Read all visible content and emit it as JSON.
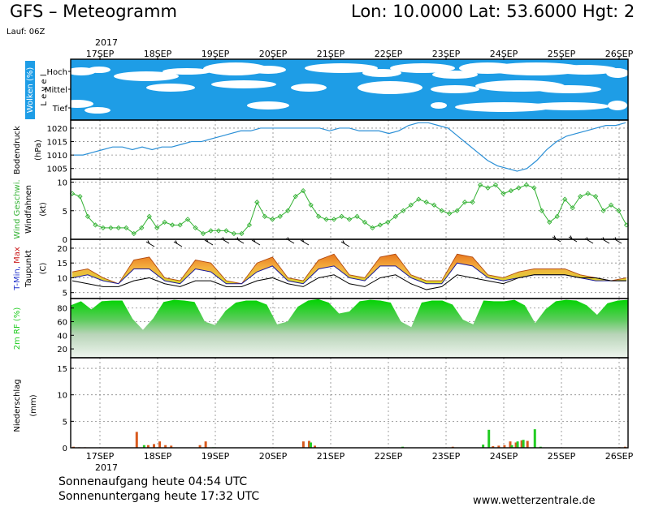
{
  "header": {
    "title": "GFS – Meteogramm",
    "coords": "Lon: 10.0000 Lat: 53.6000 Hgt: 2",
    "run": "Lauf: 06Z"
  },
  "footer": {
    "sunrise": "Sonnenaufgang heute 04:54 UTC",
    "sunset": "Sonnenuntergang heute 17:32 UTC",
    "site": "www.wetterzentrale.de"
  },
  "colors": {
    "cloud_bg": "#1e9de6",
    "pressure": "#2a8fd6",
    "wind": "#34b234",
    "temp_fill": "#e8962a",
    "humidity": "#22cc22",
    "precip_rain": "#d85a1e",
    "precip_shower": "#22cc22"
  },
  "chart_data": {
    "type": "line",
    "x_dates": [
      "17SEP",
      "18SEP",
      "19SEP",
      "20SEP",
      "21SEP",
      "22SEP",
      "23SEP",
      "24SEP",
      "25SEP",
      "26SEP"
    ],
    "x_year": "2017",
    "panels": {
      "clouds": {
        "ylabel": "Wolken (%)",
        "ylabel2": "L e v e l",
        "levels": [
          "Hoch",
          "Mittel",
          "Tief"
        ]
      },
      "pressure": {
        "ylabel": "Bodendruck",
        "unit": "(hPa)",
        "ticks": [
          "1020",
          "1015",
          "1010",
          "1005"
        ],
        "ylim": [
          1001,
          1023
        ],
        "values": [
          1010,
          1010,
          1011,
          1012,
          1013,
          1013,
          1012,
          1013,
          1012,
          1013,
          1013,
          1014,
          1015,
          1015,
          1016,
          1017,
          1018,
          1019,
          1019,
          1020,
          1020,
          1020,
          1020,
          1020,
          1020,
          1020,
          1019,
          1020,
          1020,
          1019,
          1019,
          1019,
          1018,
          1019,
          1021,
          1022,
          1022,
          1021,
          1020,
          1017,
          1014,
          1011,
          1008,
          1006,
          1005,
          1004,
          1005,
          1008,
          1012,
          1015,
          1017,
          1018,
          1019,
          1020,
          1021,
          1021,
          1022
        ]
      },
      "wind": {
        "ylabel": "Wind Geschwi.",
        "ylabel2": "Windfahnen",
        "unit": "(kt)",
        "ticks": [
          "10",
          "5",
          "0"
        ],
        "ylim": [
          0,
          10.5
        ],
        "values": [
          8,
          7.5,
          4,
          2.5,
          2,
          2,
          2,
          2,
          1,
          2,
          4,
          2,
          3,
          2.5,
          2.5,
          3.5,
          2,
          1,
          1.5,
          1.5,
          1.5,
          1,
          1,
          2.5,
          6.5,
          4,
          3.5,
          4,
          5,
          7.5,
          8.5,
          6,
          4,
          3.5,
          3.5,
          4,
          3.5,
          4,
          3,
          2,
          2.5,
          3,
          4,
          5,
          6,
          7,
          6.5,
          6,
          5,
          4.5,
          5,
          6.5,
          6.5,
          9.5,
          9,
          9.5,
          8,
          8.5,
          9,
          9.5,
          9,
          5,
          3,
          4,
          7,
          5.5,
          7.5,
          8,
          7.5,
          5,
          6,
          5,
          2.5
        ]
      },
      "temperature": {
        "ylabel": "T-Min, Max",
        "ylabel2": "Taupunkt",
        "unit": "(C)",
        "ticks": [
          "20",
          "15",
          "10",
          "5"
        ],
        "ylim": [
          3,
          23
        ],
        "tmax": [
          12,
          13,
          10,
          8,
          16,
          17,
          10,
          9,
          16,
          15,
          9,
          8,
          15,
          17,
          10,
          9,
          16,
          18,
          11,
          10,
          17,
          18,
          11,
          9,
          9,
          18,
          17,
          11,
          10,
          12,
          13,
          13,
          13,
          11,
          10,
          9,
          10
        ],
        "tmin": [
          10,
          11,
          9,
          8,
          13,
          13,
          9,
          8,
          13,
          12,
          8,
          8,
          12,
          14,
          9,
          8,
          13,
          14,
          10,
          9,
          14,
          14,
          10,
          8,
          8,
          15,
          14,
          10,
          9,
          10,
          11,
          11,
          11,
          10,
          9,
          9,
          9
        ],
        "dewpoint": [
          9,
          8,
          7,
          7,
          9,
          10,
          8,
          7,
          9,
          9,
          7,
          7,
          9,
          10,
          8,
          7,
          10,
          11,
          8,
          7,
          10,
          11,
          8,
          6,
          7,
          11,
          10,
          9,
          8,
          10,
          11,
          11,
          11,
          10,
          10,
          9,
          9
        ]
      },
      "humidity": {
        "ylabel": "2m RF (%)",
        "ticks": [
          "80",
          "60",
          "40",
          "20"
        ],
        "ylim": [
          7,
          94
        ],
        "values": [
          84,
          90,
          78,
          90,
          91,
          91,
          64,
          48,
          65,
          89,
          92,
          91,
          89,
          60,
          55,
          76,
          88,
          91,
          91,
          85,
          56,
          60,
          82,
          91,
          93,
          88,
          72,
          75,
          90,
          92,
          91,
          88,
          60,
          52,
          88,
          91,
          91,
          85,
          63,
          56,
          91,
          90,
          90,
          92,
          84,
          58,
          78,
          90,
          92,
          91,
          84,
          70,
          87,
          91,
          92
        ]
      },
      "precipitation": {
        "ylabel": "Niederschlag",
        "unit": "(mm)",
        "ticks": [
          "15",
          "10",
          "5",
          "0"
        ],
        "ylim": [
          0,
          17
        ],
        "rain": [
          [
            0,
            0.2
          ],
          [
            1,
            0.1
          ],
          [
            2,
            0.1
          ],
          [
            11,
            3
          ],
          [
            13,
            0.5
          ],
          [
            14,
            0.7
          ],
          [
            15,
            1.2
          ],
          [
            16,
            0.5
          ],
          [
            17,
            0.4
          ],
          [
            22,
            0.5
          ],
          [
            23,
            1.2
          ],
          [
            40,
            1.2
          ],
          [
            41,
            1.3
          ],
          [
            42,
            0.4
          ],
          [
            66,
            0.2
          ],
          [
            73,
            0.3
          ],
          [
            74,
            0.4
          ],
          [
            75,
            0.5
          ],
          [
            76,
            1.2
          ],
          [
            77,
            1.0
          ],
          [
            78,
            1.4
          ],
          [
            79,
            1.3
          ],
          [
            95,
            0.1
          ],
          [
            96,
            0.2
          ]
        ],
        "shower": [
          [
            12,
            0.5
          ],
          [
            24,
            0.1
          ],
          [
            41,
            1.0
          ],
          [
            57,
            0.2
          ],
          [
            71,
            0.6
          ],
          [
            72,
            3.4
          ],
          [
            76,
            0.5
          ],
          [
            77,
            1.2
          ],
          [
            78,
            1.5
          ],
          [
            80,
            3.5
          ],
          [
            81,
            0.2
          ]
        ]
      }
    }
  }
}
